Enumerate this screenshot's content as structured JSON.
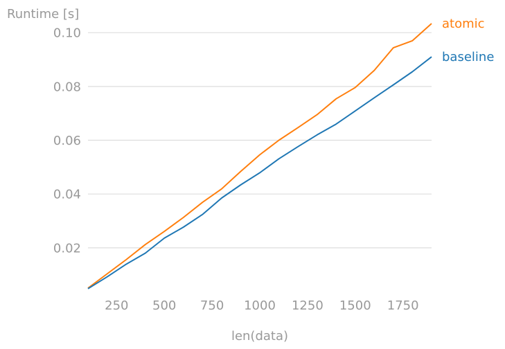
{
  "chart_data": {
    "type": "line",
    "ylabel": "Runtime [s]",
    "xlabel": "len(data)",
    "xlim": [
      100,
      1900
    ],
    "ylim": [
      0.004,
      0.107
    ],
    "xticks": [
      {
        "value": 250,
        "label": "250"
      },
      {
        "value": 500,
        "label": "500"
      },
      {
        "value": 750,
        "label": "750"
      },
      {
        "value": 1000,
        "label": "1000"
      },
      {
        "value": 1250,
        "label": "1250"
      },
      {
        "value": 1500,
        "label": "1500"
      },
      {
        "value": 1750,
        "label": "1750"
      }
    ],
    "yticks": [
      {
        "value": 0.02,
        "label": "0.02"
      },
      {
        "value": 0.04,
        "label": "0.04"
      },
      {
        "value": 0.06,
        "label": "0.06"
      },
      {
        "value": 0.08,
        "label": "0.08"
      },
      {
        "value": 0.1,
        "label": "0.10"
      }
    ],
    "grid": "horizontal",
    "x": [
      100,
      200,
      300,
      400,
      500,
      600,
      700,
      800,
      900,
      1000,
      1100,
      1200,
      1300,
      1400,
      1500,
      1600,
      1700,
      1800,
      1900
    ],
    "series": [
      {
        "name": "atomic",
        "color": "#ff7f0e",
        "values": [
          0.005,
          0.0103,
          0.0156,
          0.0212,
          0.0261,
          0.0313,
          0.0369,
          0.0419,
          0.0484,
          0.0546,
          0.06,
          0.0647,
          0.0695,
          0.0754,
          0.0796,
          0.086,
          0.0944,
          0.097,
          0.1034
        ]
      },
      {
        "name": "baseline",
        "color": "#1f77b4",
        "values": [
          0.0048,
          0.0092,
          0.0139,
          0.018,
          0.0236,
          0.0277,
          0.0324,
          0.0385,
          0.0434,
          0.0479,
          0.0531,
          0.0576,
          0.062,
          0.066,
          0.0709,
          0.0758,
          0.0806,
          0.0855,
          0.091
        ]
      }
    ]
  }
}
